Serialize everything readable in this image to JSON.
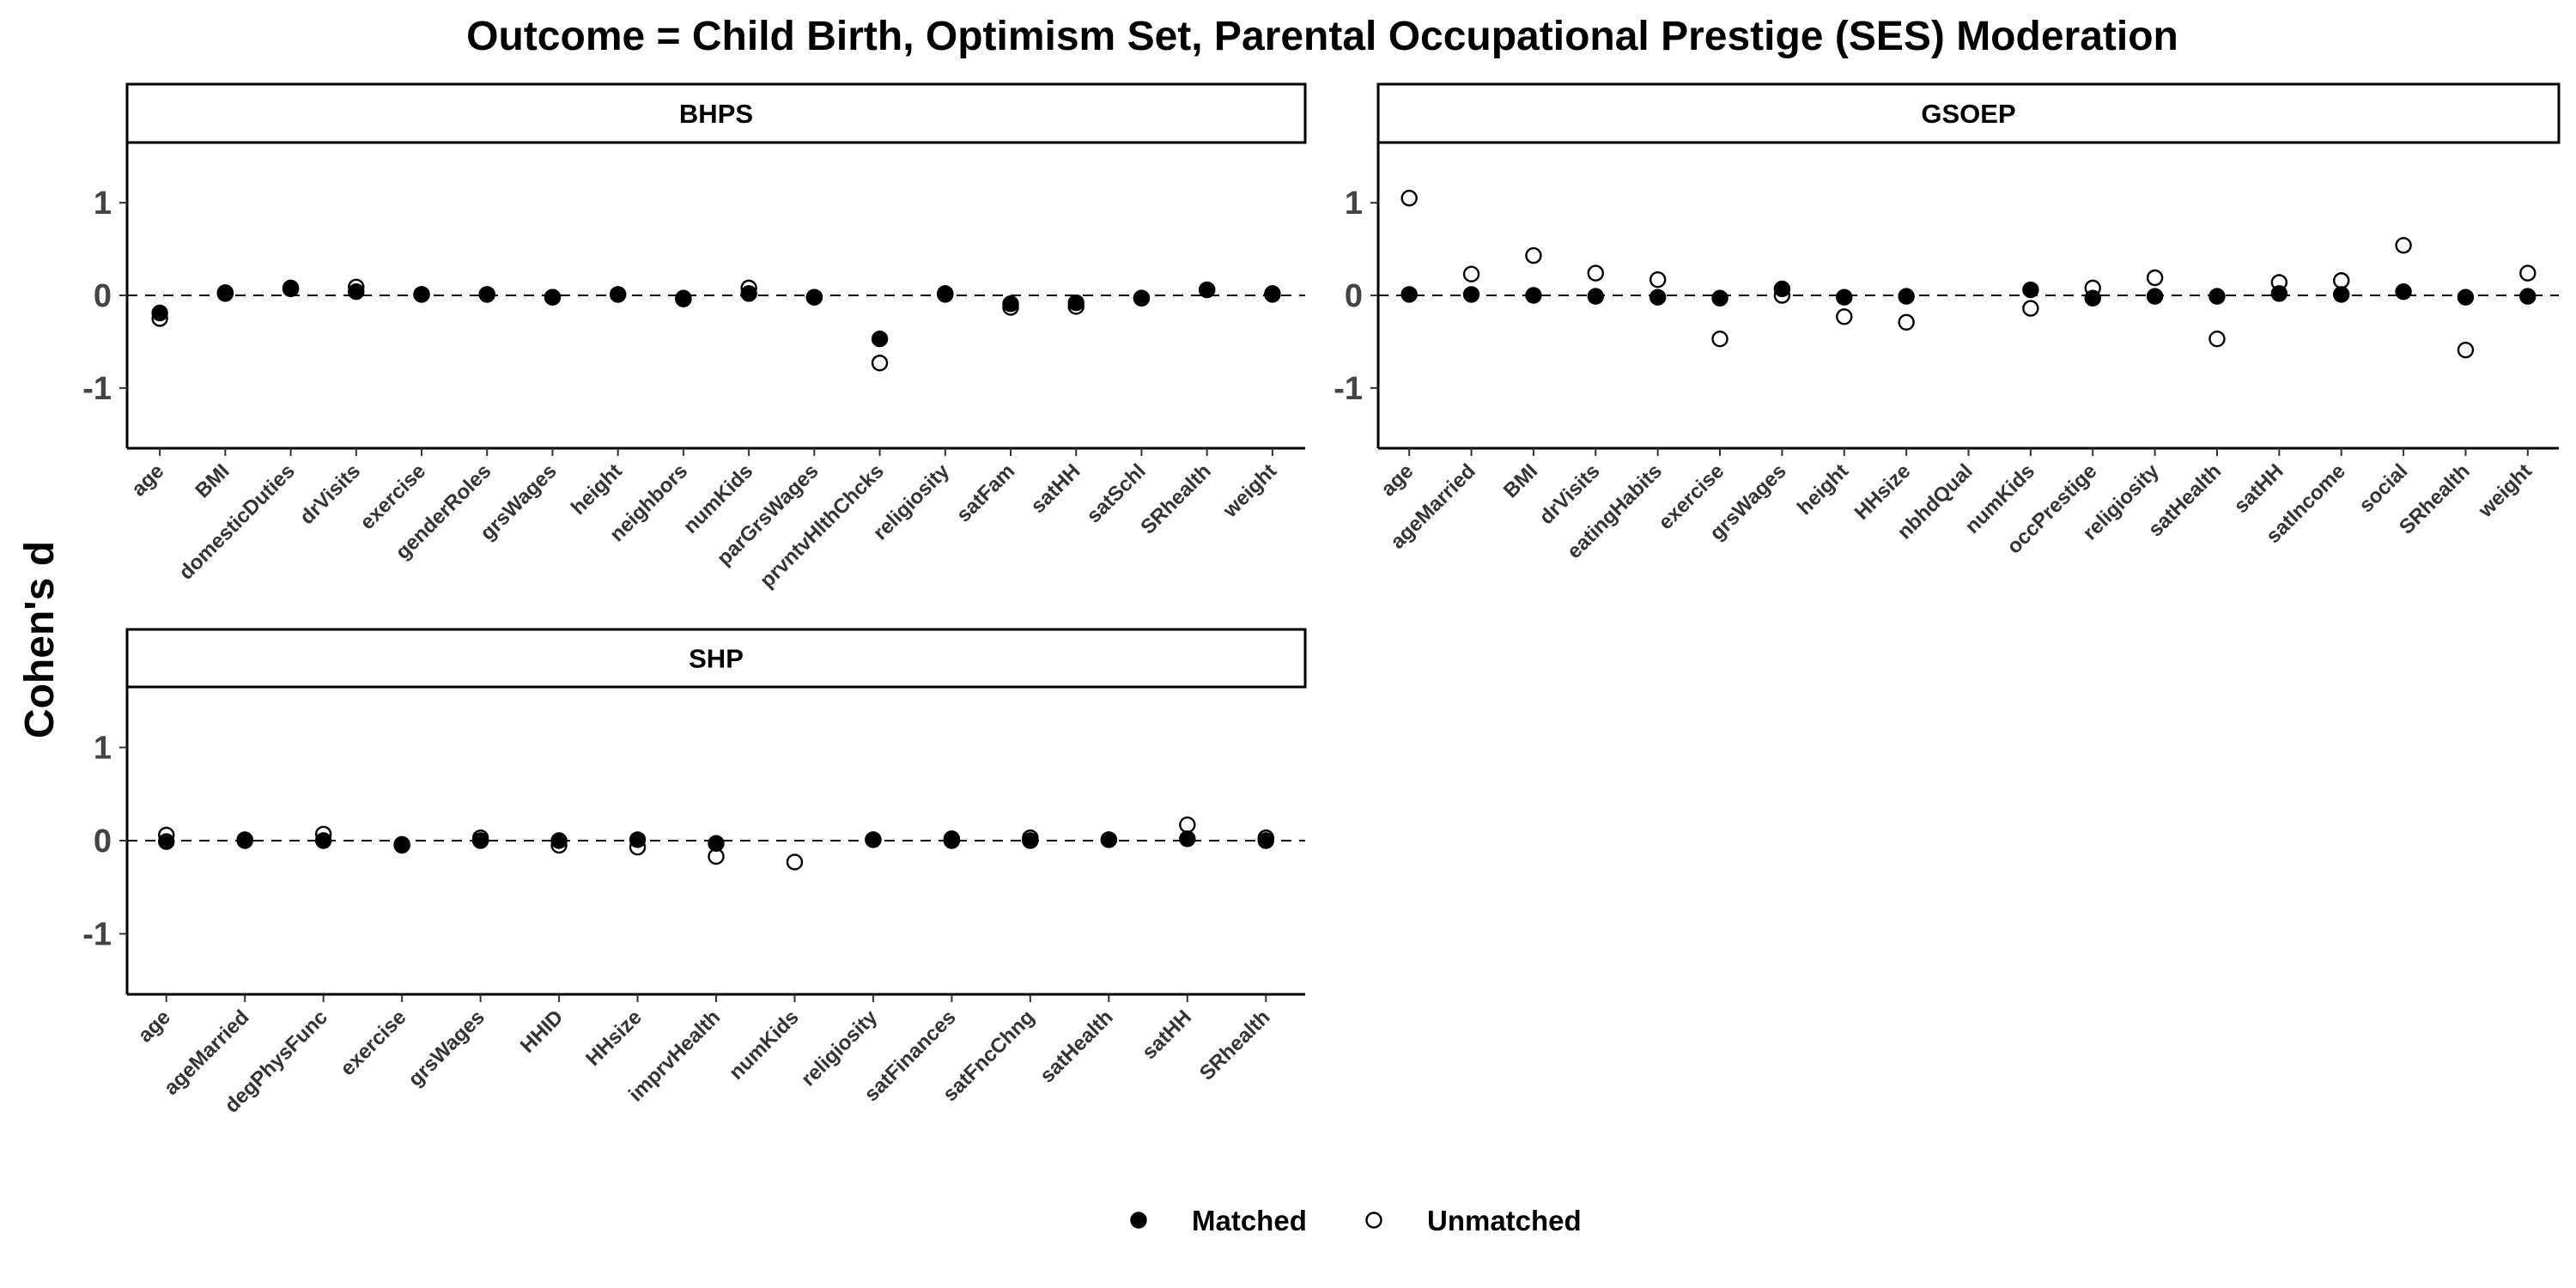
{
  "chart_data": {
    "type": "scatter",
    "title": "Outcome = Child Birth, Optimism Set, Parental Occupational Prestige (SES) Moderation",
    "ylabel": "Cohen's d",
    "ylim": [
      -1.65,
      1.65
    ],
    "yticks": [
      -1,
      0,
      1
    ],
    "reference_line": 0,
    "legend": {
      "placement": "bottom",
      "entries": [
        {
          "name": "Matched",
          "fill": "#000000"
        },
        {
          "name": "Unmatched",
          "fill": "#ffffff"
        }
      ]
    },
    "panels": [
      {
        "name": "BHPS",
        "categories": [
          "age",
          "BMI",
          "domesticDuties",
          "drVisits",
          "exercise",
          "genderRoles",
          "grsWages",
          "height",
          "neighbors",
          "numKids",
          "parGrsWages",
          "prvntvHlthChcks",
          "religiosity",
          "satFam",
          "satHH",
          "satSchl",
          "SRhealth",
          "weight"
        ],
        "series": [
          {
            "name": "Matched",
            "values": [
              -0.19,
              0.02,
              0.07,
              0.04,
              0.01,
              0.01,
              -0.02,
              0.01,
              -0.04,
              0.02,
              -0.02,
              -0.47,
              0.01,
              -0.09,
              -0.08,
              -0.03,
              0.06,
              0.01
            ]
          },
          {
            "name": "Unmatched",
            "values": [
              -0.25,
              0.03,
              0.08,
              0.09,
              0.01,
              0.01,
              -0.02,
              0.01,
              -0.03,
              0.08,
              -0.02,
              -0.73,
              0.02,
              -0.13,
              -0.12,
              -0.03,
              0.06,
              0.02
            ]
          }
        ]
      },
      {
        "name": "GSOEP",
        "categories": [
          "age",
          "ageMarried",
          "BMI",
          "drVisits",
          "eatingHabits",
          "exercise",
          "grsWages",
          "height",
          "HHsize",
          "nbhdQual",
          "numKids",
          "occPrestige",
          "religiosity",
          "satHealth",
          "satHH",
          "satIncome",
          "social",
          "SRhealth",
          "weight"
        ],
        "series": [
          {
            "name": "Matched",
            "values": [
              0.01,
              0.01,
              0.0,
              -0.01,
              -0.02,
              -0.03,
              0.07,
              -0.02,
              -0.01,
              null,
              0.06,
              -0.03,
              -0.01,
              -0.01,
              0.02,
              0.01,
              0.04,
              -0.02,
              -0.01
            ]
          },
          {
            "name": "Unmatched",
            "values": [
              1.05,
              0.23,
              0.43,
              0.24,
              0.17,
              -0.47,
              0.0,
              -0.23,
              -0.29,
              null,
              -0.14,
              0.08,
              0.19,
              -0.47,
              0.14,
              0.16,
              0.54,
              -0.59,
              0.24
            ]
          }
        ]
      },
      {
        "name": "SHP",
        "categories": [
          "age",
          "ageMarried",
          "degPhysFunc",
          "exercise",
          "grsWages",
          "HHID",
          "HHsize",
          "imprvHealth",
          "numKids",
          "religiosity",
          "satFinances",
          "satFncChng",
          "satHealth",
          "satHH",
          "SRhealth"
        ],
        "series": [
          {
            "name": "Matched",
            "values": [
              -0.01,
              0.0,
              0.0,
              -0.05,
              0.0,
              0.0,
              0.01,
              -0.03,
              null,
              0.01,
              0.0,
              0.0,
              0.01,
              0.02,
              0.0
            ]
          },
          {
            "name": "Unmatched",
            "values": [
              0.06,
              0.01,
              0.07,
              -0.04,
              0.03,
              -0.05,
              -0.07,
              -0.17,
              -0.23,
              0.01,
              0.02,
              0.03,
              0.01,
              0.17,
              0.03
            ]
          }
        ]
      }
    ]
  }
}
